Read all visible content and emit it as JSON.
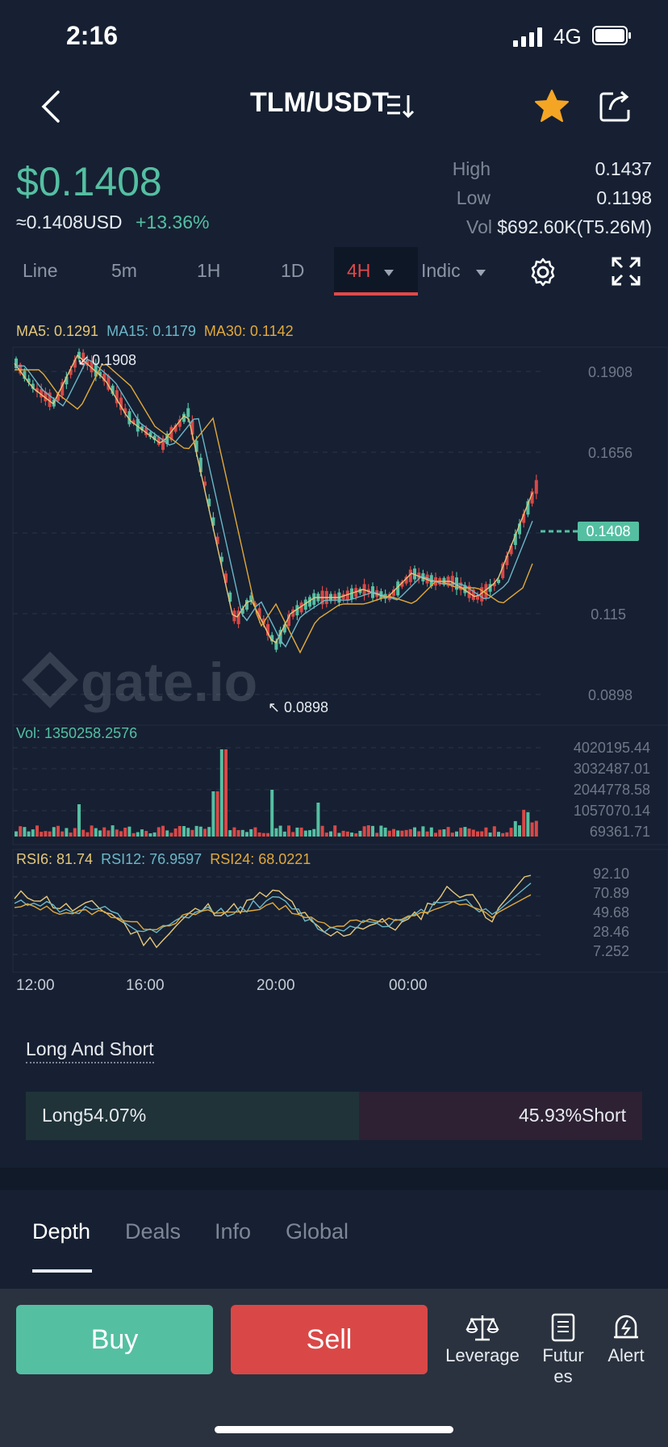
{
  "status": {
    "time": "2:16",
    "network": "4G"
  },
  "header": {
    "pair": "TLM/USDT"
  },
  "ticker": {
    "price": "$0.1408",
    "usd_equiv": "≈0.1408USD",
    "change": "+13.36%",
    "high_label": "High",
    "high_value": "0.1437",
    "low_label": "Low",
    "low_value": "0.1198",
    "vol_label": "Vol",
    "vol_value": "$692.60K(T5.26M)"
  },
  "timeframes": {
    "line": "Line",
    "m5": "5m",
    "h1": "1H",
    "d1": "1D",
    "active": "4H",
    "indic": "Indic"
  },
  "ma_legend": {
    "ma5": "MA5: 0.1291",
    "ma15": "MA15: 0.1179",
    "ma30": "MA30: 0.1142"
  },
  "chart": {
    "price_axis": [
      "0.1908",
      "0.1656",
      "0.115",
      "0.0898"
    ],
    "current_price_tag": "0.1408",
    "max_label": "0.1908",
    "min_label": "0.0898",
    "watermark": "gate.io",
    "vol_legend": "Vol: 1350258.2576",
    "vol_axis": [
      "4020195.44",
      "3032487.01",
      "2044778.58",
      "1057070.14",
      "69361.71"
    ],
    "rsi_legend": {
      "rsi6": "RSI6: 81.74",
      "rsi12": "RSI12: 76.9597",
      "rsi24": "RSI24: 68.0221"
    },
    "rsi_axis": [
      "92.10",
      "70.89",
      "49.68",
      "28.46",
      "7.252"
    ],
    "time_axis": [
      "12:00",
      "16:00",
      "20:00",
      "00:00"
    ]
  },
  "long_short": {
    "title": "Long And Short",
    "long": "Long54.07%",
    "short": "45.93%Short",
    "long_pct": 54.07
  },
  "bottom_tabs": [
    "Depth",
    "Deals",
    "Info",
    "Global"
  ],
  "actions": {
    "buy": "Buy",
    "sell": "Sell",
    "leverage": "Leverage",
    "futures": "Futur\nes",
    "alert": "Alert"
  },
  "colors": {
    "up": "#55bfa2",
    "down": "#d94847",
    "ma5": "#e6c77a",
    "ma15": "#6bb7c9",
    "ma30": "#e3a83a"
  }
}
